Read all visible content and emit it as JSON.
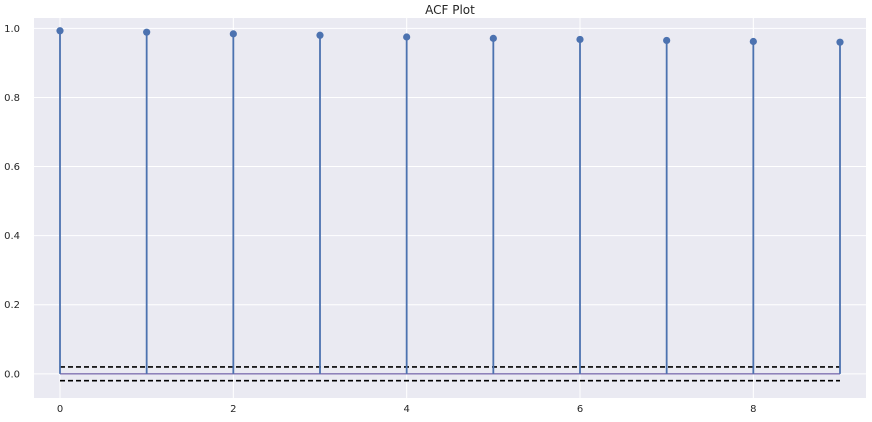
{
  "chart_data": {
    "type": "stem",
    "title": "ACF Plot",
    "xlabel": "",
    "ylabel": "",
    "x": [
      0,
      1,
      2,
      3,
      4,
      5,
      6,
      7,
      8,
      9
    ],
    "values": [
      0.993,
      0.989,
      0.984,
      0.98,
      0.975,
      0.971,
      0.968,
      0.965,
      0.962,
      0.96
    ],
    "confidence_band": [
      -0.02,
      0.02
    ],
    "xlim": [
      -0.3,
      9.3
    ],
    "ylim": [
      -0.07,
      1.03
    ],
    "xticks": [
      0,
      2,
      4,
      6,
      8
    ],
    "yticks": [
      0.0,
      0.2,
      0.4,
      0.6,
      0.8,
      1.0
    ],
    "xtick_labels": [
      "0",
      "2",
      "4",
      "6",
      "8"
    ],
    "ytick_labels": [
      "0.0",
      "0.2",
      "0.4",
      "0.6",
      "0.8",
      "1.0"
    ],
    "grid": true,
    "colors": {
      "plot_background": "#eaeaf2",
      "grid": "#ffffff",
      "stem": "#4c72b0",
      "baseline": "#8172b2",
      "band": "#000000"
    }
  }
}
